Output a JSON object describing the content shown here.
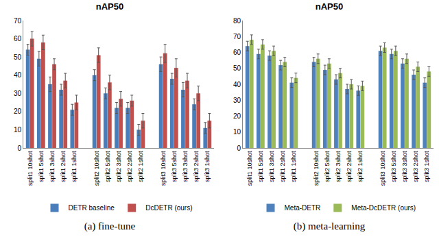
{
  "chart_data": [
    {
      "type": "bar",
      "title": "nAP50",
      "caption": "(a) fine-tune",
      "categories": [
        "split1 10shot",
        "split1 5shot",
        "split1 3shot",
        "split1 2shot",
        "split1 1shot",
        null,
        "split2 10shot",
        "split2 5shot",
        "split2 3shot",
        "split2 2shot",
        "split2 1shot",
        null,
        "split3 10shot",
        "split3 5shot",
        "split3 3shot",
        "split3 2shot",
        "split3 1shot"
      ],
      "series": [
        {
          "name": "DETR baseline",
          "color": "#4a7ebb",
          "values": [
            54,
            49,
            35,
            32,
            21,
            null,
            40,
            30,
            22,
            22,
            10,
            null,
            46,
            38,
            32,
            24,
            11
          ],
          "errors": [
            3,
            4,
            4,
            3,
            3,
            null,
            3,
            3,
            3,
            3,
            3,
            null,
            4,
            3,
            4,
            3,
            3
          ]
        },
        {
          "name": "DcDETR (ours)",
          "color": "#c0504d",
          "values": [
            60,
            58,
            46,
            37,
            25,
            null,
            51,
            36,
            27,
            26,
            15,
            null,
            52,
            44,
            37,
            30,
            15
          ],
          "errors": [
            4,
            4,
            3,
            4,
            4,
            null,
            4,
            4,
            4,
            3,
            4,
            null,
            5,
            5,
            4,
            4,
            4
          ]
        }
      ],
      "ylim": [
        0,
        70
      ],
      "yticks": [
        0,
        10,
        20,
        30,
        40,
        50,
        60,
        70
      ],
      "grid": false,
      "legend": "bottom"
    },
    {
      "type": "bar",
      "title": "nAP50",
      "caption": "(b) meta-learning",
      "categories": [
        "split1 10shot",
        "split1 5shot",
        "split1 3shot",
        "split1 2shot",
        "split1 1shot",
        null,
        "split2 10shot",
        "split2 5shot",
        "split2 3shot",
        "split2 2shot",
        "split2 1shot",
        null,
        "split3 10shot",
        "split3 5shot",
        "split3 3shot",
        "split3 2shot",
        "split3 1shot"
      ],
      "series": [
        {
          "name": "Meta-DETR",
          "color": "#4f81bd",
          "values": [
            64,
            59,
            58,
            52,
            41,
            null,
            54,
            49,
            43,
            37,
            36,
            null,
            61,
            59,
            53,
            46,
            41
          ],
          "errors": [
            3,
            3,
            3,
            3,
            3,
            null,
            3,
            3,
            3,
            3,
            3,
            null,
            3,
            3,
            3,
            3,
            3
          ]
        },
        {
          "name": "Meta-DcDETR (ours)",
          "color": "#9bbb59",
          "values": [
            68,
            65,
            61,
            54,
            44,
            null,
            56,
            53,
            47,
            40,
            39,
            null,
            63,
            61,
            56,
            51,
            48
          ],
          "errors": [
            3,
            3,
            3,
            3,
            3,
            null,
            3,
            3,
            3,
            3,
            3,
            null,
            3,
            3,
            3,
            3,
            3
          ]
        }
      ],
      "ylim": [
        0,
        80
      ],
      "yticks": [
        0,
        10,
        20,
        30,
        40,
        50,
        60,
        70,
        80
      ],
      "grid": false,
      "legend": "bottom"
    }
  ]
}
